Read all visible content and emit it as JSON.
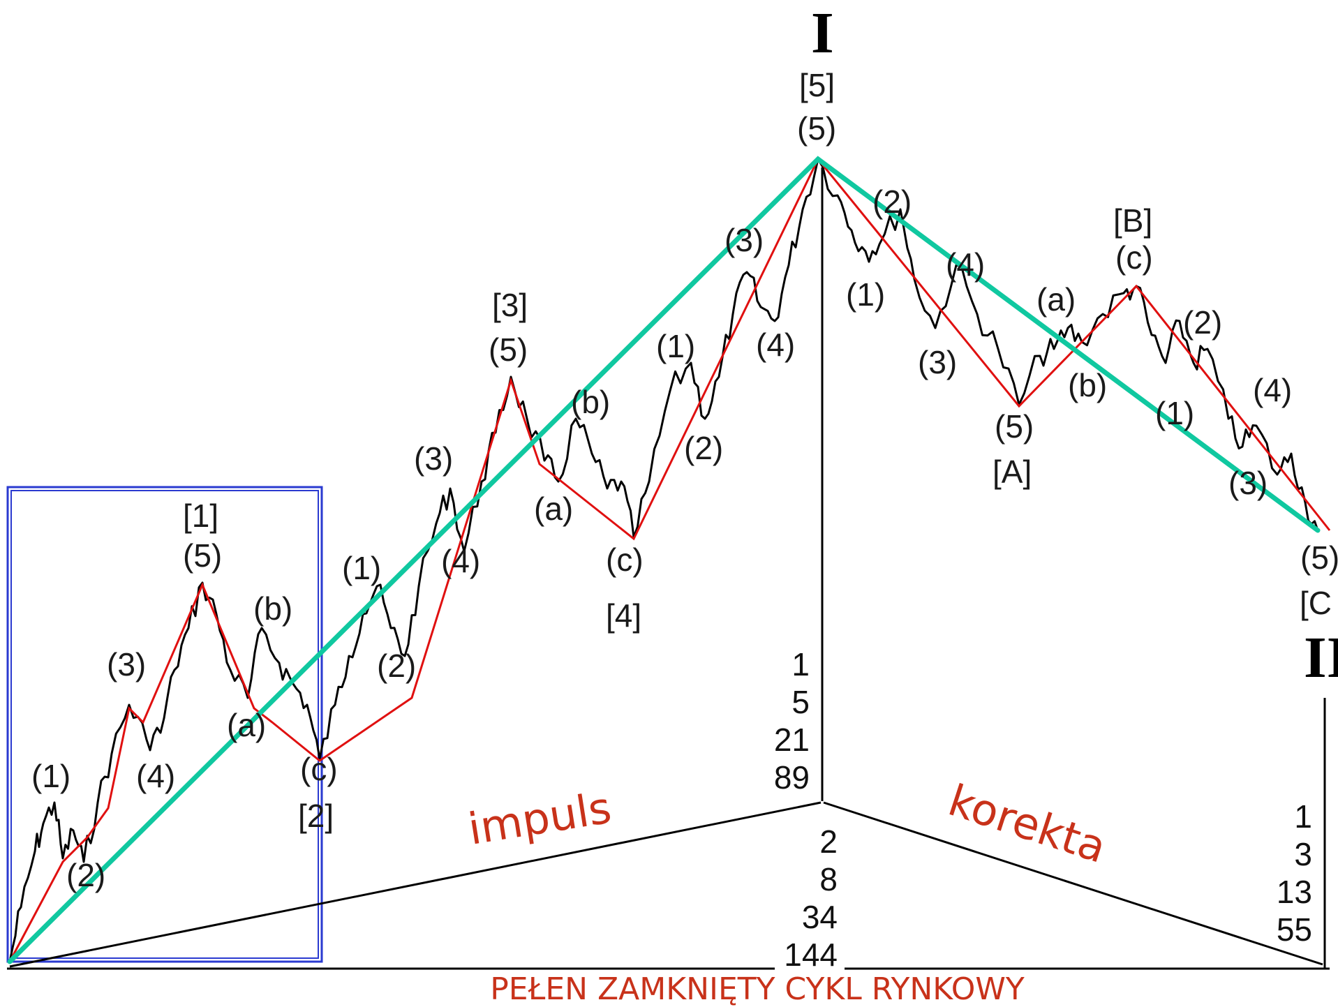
{
  "wave_labels": {
    "top_I": "I",
    "top_5_bracket": "[5]",
    "top_5_paren": "(5)",
    "w1_bracket": "[1]",
    "w1_5": "(5)",
    "w1_1": "(1)",
    "w1_2": "(2)",
    "w1_3": "(3)",
    "w1_4": "(4)",
    "w2_a": "(a)",
    "w2_b": "(b)",
    "w2_c": "(c)",
    "w2_bracket": "[2]",
    "w3_1": "(1)",
    "w3_2": "(2)",
    "w3_3": "(3)",
    "w3_4": "(4)",
    "w3_5": "(5)",
    "w3_bracket": "[3]",
    "w4_a": "(a)",
    "w4_b": "(b)",
    "w4_c": "(c)",
    "w4_bracket": "[4]",
    "w5_1": "(1)",
    "w5_2": "(2)",
    "w5_3": "(3)",
    "w5_4": "(4)",
    "wa_1": "(1)",
    "wa_2": "(2)",
    "wa_3": "(3)",
    "wa_4": "(4)",
    "wa_5": "(5)",
    "wa_bracket": "[A]",
    "wb_a": "(a)",
    "wb_b": "(b)",
    "wb_c": "(c)",
    "wb_bracket": "[B]",
    "wc_1": "(1)",
    "wc_2": "(2)",
    "wc_3": "(3)",
    "wc_4": "(4)",
    "wc_5": "(5)",
    "wc_bracket": "[C",
    "bottom_II": "II"
  },
  "impulse_counts": {
    "upper": [
      "1",
      "5",
      "21",
      "89"
    ],
    "lower": [
      "2",
      "8",
      "34",
      "144"
    ]
  },
  "correction_counts": [
    "1",
    "3",
    "13",
    "55"
  ],
  "phases": {
    "impulse": "impuls",
    "correction": "korekta"
  },
  "caption": "PEŁEN ZAMKNIĘTY CYKL RYNKOWY",
  "colors": {
    "price": "#000000",
    "zigzag": "#e01010",
    "trend": "#10c8a0",
    "frame": "#2a3ad0",
    "text_accent": "#c8321a"
  }
}
